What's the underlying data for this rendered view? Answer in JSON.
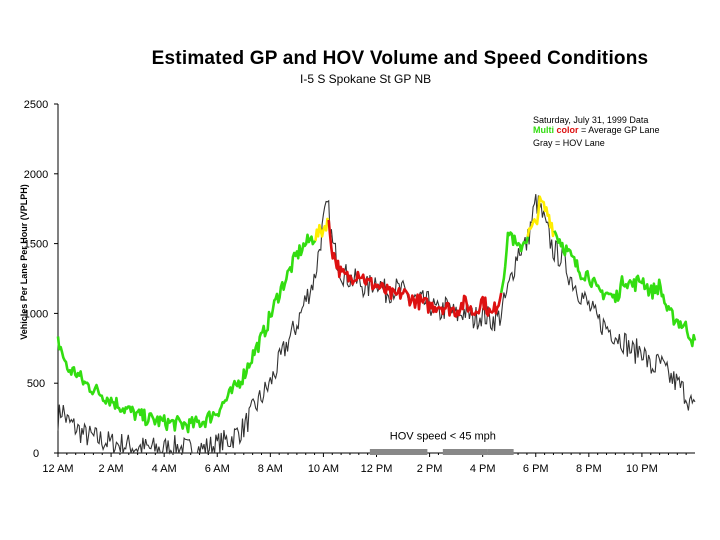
{
  "chart_data": {
    "type": "line",
    "title": "Estimated GP and HOV Volume and Speed Conditions",
    "subtitle": "I-5 S Spokane St GP NB",
    "xlabel": "",
    "ylabel": "Vehicles Per Lane Per Hour (VPLPH)",
    "ylim": [
      0,
      2500
    ],
    "xlim": [
      0,
      1440
    ],
    "yticks": [
      0,
      500,
      1000,
      1500,
      2000,
      2500
    ],
    "xticks": [
      {
        "label": "12 AM",
        "min": 0
      },
      {
        "label": "2 AM",
        "min": 120
      },
      {
        "label": "4 AM",
        "min": 240
      },
      {
        "label": "6 AM",
        "min": 360
      },
      {
        "label": "8 AM",
        "min": 480
      },
      {
        "label": "10 AM",
        "min": 600
      },
      {
        "label": "12 PM",
        "min": 720
      },
      {
        "label": "2 PM",
        "min": 840
      },
      {
        "label": "4 PM",
        "min": 960
      },
      {
        "label": "6 PM",
        "min": 1080
      },
      {
        "label": "8 PM",
        "min": 1200
      },
      {
        "label": "10 PM",
        "min": 1320
      }
    ],
    "legend": {
      "line1": "Saturday, July 31, 1999 Data",
      "multi_word1": "Multi",
      "multi_word2": "color",
      "multi_rest": " = Average GP Lane",
      "gray_word": "Gray",
      "gray_rest": " = HOV Lane"
    },
    "colors": {
      "green": "#33dd11",
      "yellow": "#ffee00",
      "red": "#dd1111",
      "hov": "#333333",
      "bar": "#888888"
    },
    "series": [
      {
        "name": "Average GP Lane",
        "x": [
          0,
          10,
          20,
          40,
          60,
          80,
          100,
          120,
          150,
          180,
          210,
          240,
          270,
          300,
          330,
          360,
          390,
          420,
          440,
          460,
          480,
          500,
          520,
          540,
          560,
          580,
          600,
          610,
          620,
          640,
          660,
          680,
          700,
          720,
          740,
          760,
          780,
          800,
          820,
          840,
          860,
          880,
          900,
          920,
          940,
          960,
          980,
          1000,
          1010,
          1020,
          1040,
          1060,
          1080,
          1090,
          1100,
          1110,
          1120,
          1140,
          1160,
          1180,
          1200,
          1220,
          1240,
          1260,
          1280,
          1300,
          1320,
          1340,
          1360,
          1380,
          1400,
          1420,
          1440
        ],
        "y": [
          800,
          720,
          600,
          580,
          500,
          460,
          420,
          380,
          320,
          270,
          240,
          220,
          210,
          200,
          230,
          300,
          420,
          560,
          700,
          820,
          980,
          1150,
          1280,
          1420,
          1500,
          1550,
          1600,
          1680,
          1450,
          1280,
          1250,
          1300,
          1220,
          1200,
          1160,
          1120,
          1150,
          1100,
          1080,
          1050,
          1060,
          1040,
          1020,
          1080,
          1000,
          1100,
          980,
          1120,
          1350,
          1600,
          1450,
          1550,
          1650,
          1800,
          1750,
          1700,
          1600,
          1500,
          1400,
          1300,
          1280,
          1150,
          1150,
          1100,
          1250,
          1200,
          1250,
          1150,
          1200,
          1000,
          950,
          900,
          780
        ],
        "colors": [
          "green",
          "green",
          "green",
          "green",
          "green",
          "green",
          "green",
          "green",
          "green",
          "green",
          "green",
          "green",
          "green",
          "green",
          "green",
          "green",
          "green",
          "green",
          "green",
          "green",
          "green",
          "green",
          "green",
          "green",
          "green",
          "yellow",
          "yellow",
          "red",
          "red",
          "red",
          "red",
          "red",
          "red",
          "red",
          "red",
          "red",
          "red",
          "red",
          "red",
          "red",
          "red",
          "red",
          "red",
          "red",
          "red",
          "red",
          "red",
          "green",
          "green",
          "green",
          "green",
          "yellow",
          "yellow",
          "yellow",
          "yellow",
          "yellow",
          "green",
          "green",
          "green",
          "green",
          "green",
          "green",
          "green",
          "green",
          "green",
          "green",
          "green",
          "green",
          "green",
          "green",
          "green",
          "green",
          "green"
        ]
      },
      {
        "name": "HOV Lane",
        "x": [
          0,
          10,
          20,
          40,
          60,
          80,
          100,
          120,
          150,
          180,
          210,
          240,
          270,
          300,
          330,
          360,
          390,
          420,
          440,
          460,
          480,
          500,
          520,
          540,
          560,
          580,
          600,
          610,
          620,
          640,
          660,
          680,
          700,
          720,
          740,
          760,
          780,
          800,
          820,
          840,
          860,
          880,
          900,
          920,
          940,
          960,
          980,
          1000,
          1020,
          1040,
          1060,
          1080,
          1090,
          1100,
          1120,
          1140,
          1160,
          1180,
          1200,
          1220,
          1240,
          1260,
          1280,
          1300,
          1320,
          1340,
          1360,
          1380,
          1400,
          1420,
          1440
        ],
        "y": [
          250,
          320,
          230,
          180,
          130,
          110,
          90,
          70,
          60,
          40,
          30,
          30,
          40,
          20,
          30,
          60,
          100,
          180,
          300,
          400,
          500,
          650,
          800,
          920,
          1100,
          1250,
          1650,
          1780,
          1500,
          1300,
          1250,
          1220,
          1180,
          1250,
          1150,
          1180,
          1150,
          1100,
          1080,
          1070,
          1000,
          1050,
          980,
          1020,
          960,
          1000,
          950,
          980,
          1200,
          1450,
          1500,
          1800,
          1750,
          1650,
          1450,
          1400,
          1250,
          1150,
          1050,
          950,
          900,
          850,
          800,
          720,
          750,
          600,
          650,
          550,
          500,
          420,
          300
        ]
      }
    ],
    "annotation": {
      "label": "HOV speed < 45 mph",
      "bars": [
        [
          705,
          835
        ],
        [
          870,
          970
        ],
        [
          970,
          1030
        ]
      ]
    }
  }
}
